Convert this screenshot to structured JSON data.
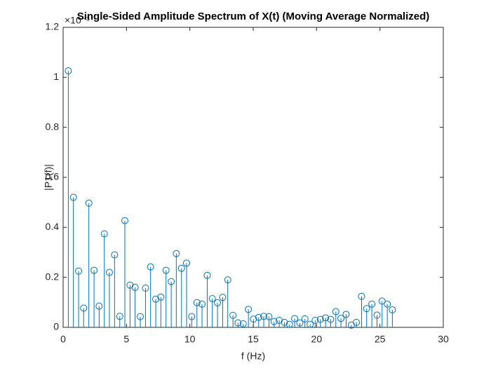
{
  "chart_data": {
    "type": "stem",
    "title": "Single-Sided Amplitude Spectrum of X(t) (Moving Average Normalized)",
    "y_exponent": "×10⁻³",
    "x_label": "f (Hz)",
    "y_label": "|P1(f)|",
    "color": "#0072BD",
    "xlim": [
      0,
      30
    ],
    "xticks": [
      0,
      5,
      10,
      15,
      20,
      25,
      30
    ],
    "ylim": [
      0,
      1.2
    ],
    "yticks": [
      0,
      0.2,
      0.4,
      0.6,
      0.8,
      1,
      1.2
    ],
    "x": [
      0.41,
      0.81,
      1.22,
      1.62,
      2.03,
      2.44,
      2.84,
      3.25,
      3.65,
      4.06,
      4.47,
      4.87,
      5.28,
      5.68,
      6.09,
      6.5,
      6.9,
      7.31,
      7.71,
      8.12,
      8.53,
      8.93,
      9.34,
      9.74,
      10.15,
      10.56,
      10.96,
      11.37,
      11.77,
      12.18,
      12.59,
      12.99,
      13.4,
      13.8,
      14.21,
      14.62,
      15.02,
      15.43,
      15.83,
      16.24,
      16.65,
      17.05,
      17.46,
      17.86,
      18.27,
      18.68,
      19.08,
      19.49,
      19.89,
      20.3,
      20.71,
      21.11,
      21.52,
      21.92,
      22.33,
      22.74,
      23.14,
      23.55,
      23.95,
      24.36,
      24.77,
      25.17,
      25.58,
      25.98
    ],
    "values": [
      1.026,
      0.52,
      0.225,
      0.077,
      0.497,
      0.228,
      0.085,
      0.374,
      0.22,
      0.29,
      0.044,
      0.427,
      0.169,
      0.16,
      0.043,
      0.157,
      0.242,
      0.113,
      0.121,
      0.228,
      0.183,
      0.295,
      0.236,
      0.257,
      0.043,
      0.099,
      0.093,
      0.208,
      0.115,
      0.098,
      0.12,
      0.19,
      0.048,
      0.018,
      0.014,
      0.072,
      0.033,
      0.04,
      0.044,
      0.043,
      0.023,
      0.028,
      0.02,
      0.012,
      0.035,
      0.018,
      0.034,
      0.012,
      0.028,
      0.032,
      0.038,
      0.032,
      0.063,
      0.036,
      0.052,
      0.009,
      0.02,
      0.124,
      0.075,
      0.093,
      0.049,
      0.105,
      0.093,
      0.07
    ]
  }
}
